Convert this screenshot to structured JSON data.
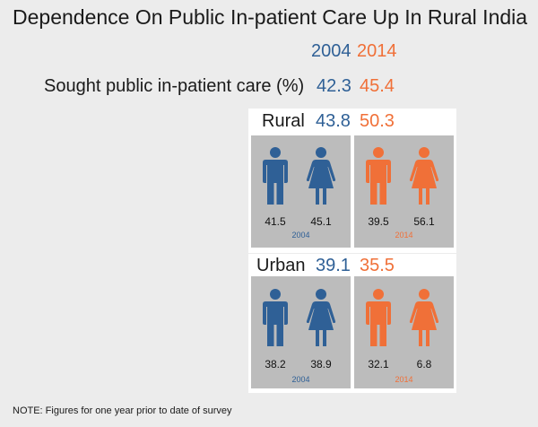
{
  "title": "Dependence On Public In-patient Care Up In Rural India",
  "years": [
    "2004",
    "2014"
  ],
  "colors": {
    "2004": "#2f6096",
    "2014": "#f07038",
    "box": "#bcbcbc"
  },
  "overall": {
    "label": "Sought public in-patient care (%)",
    "v2004": "42.3",
    "v2014": "45.4"
  },
  "note": "NOTE: Figures for one year prior to date of survey",
  "chart_data": {
    "type": "table",
    "title": "Dependence On Public In-patient Care Up In Rural India",
    "columns": [
      "2004",
      "2014"
    ],
    "overall": {
      "label": "Sought public in-patient care (%)",
      "values": [
        42.3,
        45.4
      ]
    },
    "groups": [
      {
        "name": "Rural",
        "values": [
          43.8,
          50.3
        ],
        "by_gender": {
          "2004": {
            "male-icon": 41.5,
            "female-icon": 45.1
          },
          "2014": {
            "male-icon": 39.5,
            "female-icon": 56.1
          }
        }
      },
      {
        "name": "Urban",
        "values": [
          39.1,
          35.5
        ],
        "by_gender": {
          "2004": {
            "male-icon": 38.2,
            "female-icon": 38.9
          },
          "2014": {
            "male-icon": 32.1,
            "female-icon": 6.8
          }
        }
      }
    ]
  },
  "rural": {
    "label": "Rural",
    "v2004": "43.8",
    "v2014": "50.3",
    "m2004": "41.5",
    "f2004": "45.1",
    "m2014": "39.5",
    "f2014": "56.1"
  },
  "urban": {
    "label": "Urban",
    "v2004": "39.1",
    "v2014": "35.5",
    "m2004": "38.2",
    "f2004": "38.9",
    "m2014": "32.1",
    "f2014": "6.8"
  }
}
